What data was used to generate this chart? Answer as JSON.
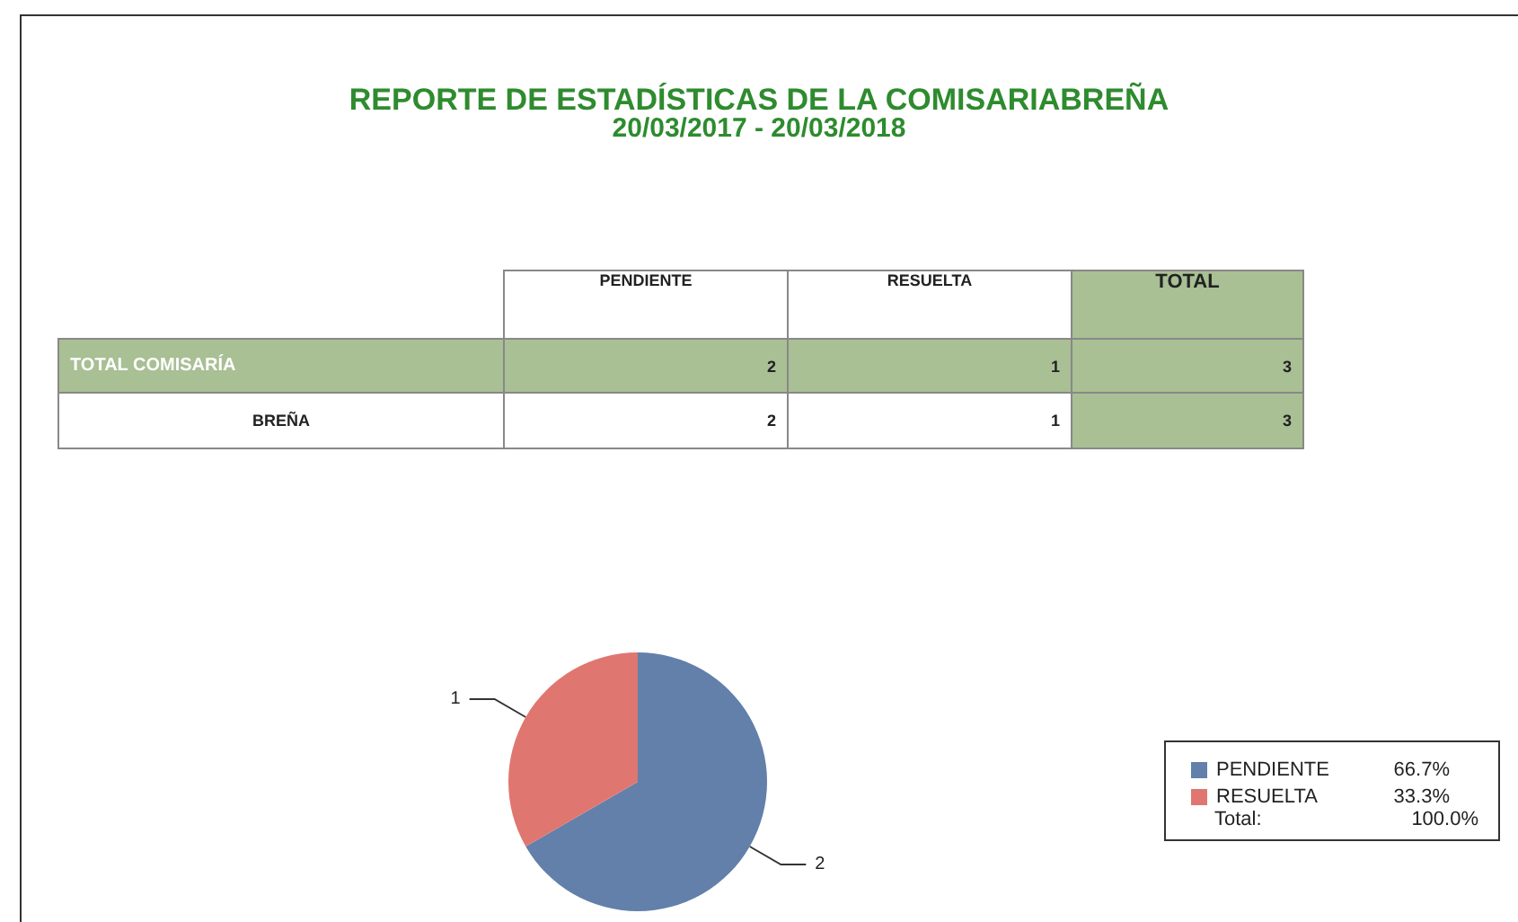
{
  "chart_data": {
    "type": "pie",
    "title": "REPORTE DE ESTADÍSTICAS DE LA COMISARIABREÑA",
    "subtitle": "20/03/2017 - 20/03/2018",
    "categories": [
      "PENDIENTE",
      "RESUELTA"
    ],
    "values": [
      2,
      1
    ],
    "colors": [
      "#6280aa",
      "#e07670"
    ],
    "data_labels": true,
    "legend": "bottom right",
    "annotations": [
      "PENDIENTE",
      "RESUELTA",
      "TOTAL",
      "TOTAL COMISARÍA",
      "2",
      "1",
      "3",
      "BREÑA",
      "2",
      "1",
      "3",
      "Total:",
      "100.0%",
      "66.7%",
      "33.3%"
    ]
  }
}
